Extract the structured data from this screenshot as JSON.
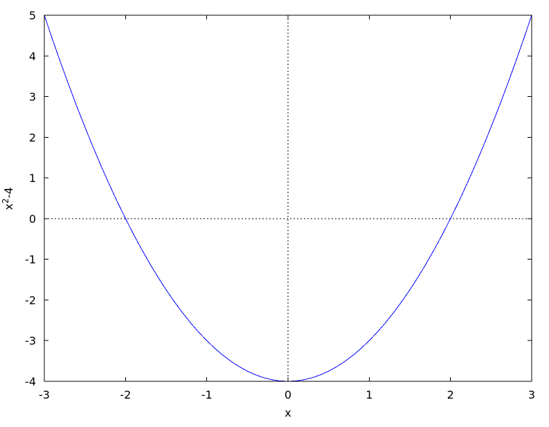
{
  "chart_data": {
    "type": "line",
    "title": "",
    "xlabel": "x",
    "ylabel": "x^2-4",
    "ylabel_parts": [
      {
        "text": "x",
        "superscript": false
      },
      {
        "text": "2",
        "superscript": true
      },
      {
        "text": "-4",
        "superscript": false
      }
    ],
    "xlim": [
      -3,
      3
    ],
    "ylim": [
      -4,
      5
    ],
    "xticks": [
      -3,
      -2,
      -1,
      0,
      1,
      2,
      3
    ],
    "yticks": [
      -4,
      -3,
      -2,
      -1,
      0,
      1,
      2,
      3,
      4,
      5
    ],
    "grid": false,
    "legend_position": "none",
    "zero_axes": {
      "style": "dotted",
      "vertical_at_x": 0,
      "horizontal_at_y": 0,
      "color": "#000000"
    },
    "axis_color": "#000000",
    "background_color": "#ffffff",
    "series": [
      {
        "color": "#0000ff",
        "x": [
          -3,
          -2.9,
          -2.8,
          -2.7,
          -2.6,
          -2.5,
          -2.4,
          -2.3,
          -2.2,
          -2.1,
          -2,
          -1.9,
          -1.8,
          -1.7,
          -1.6,
          -1.5,
          -1.4,
          -1.3,
          -1.2,
          -1.1,
          -1,
          -0.9,
          -0.8,
          -0.7,
          -0.6,
          -0.5,
          -0.4,
          -0.3,
          -0.2,
          -0.1,
          0,
          0.1,
          0.2,
          0.3,
          0.4,
          0.5,
          0.6,
          0.7,
          0.8,
          0.9,
          1,
          1.1,
          1.2,
          1.3,
          1.4,
          1.5,
          1.6,
          1.7,
          1.8,
          1.9,
          2,
          2.1,
          2.2,
          2.3,
          2.4,
          2.5,
          2.6,
          2.7,
          2.8,
          2.9,
          3
        ],
        "y": [
          5,
          4.41,
          3.84,
          3.29,
          2.76,
          2.25,
          1.76,
          1.29,
          0.84,
          0.41,
          0,
          -0.39,
          -0.76,
          -1.11,
          -1.44,
          -1.75,
          -2.04,
          -2.31,
          -2.56,
          -2.79,
          -3,
          -3.19,
          -3.36,
          -3.51,
          -3.64,
          -3.75,
          -3.84,
          -3.91,
          -3.96,
          -3.99,
          -4,
          -3.99,
          -3.96,
          -3.91,
          -3.84,
          -3.75,
          -3.64,
          -3.51,
          -3.36,
          -3.19,
          -3,
          -2.79,
          -2.56,
          -2.31,
          -2.04,
          -1.75,
          -1.44,
          -1.11,
          -0.76,
          -0.39,
          0,
          0.41,
          0.84,
          1.29,
          1.76,
          2.25,
          2.76,
          3.29,
          3.84,
          4.41,
          5
        ]
      }
    ]
  }
}
